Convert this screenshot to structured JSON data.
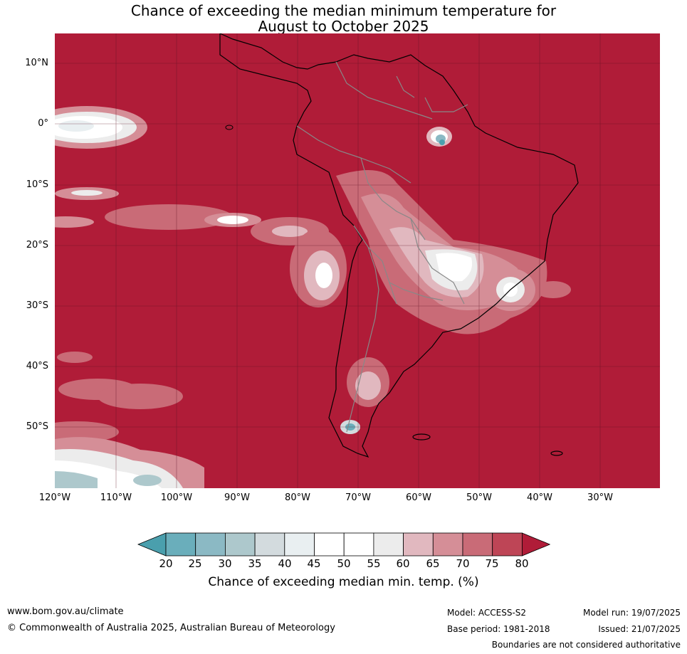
{
  "title": {
    "line1": "Chance of exceeding the median minimum temperature for",
    "line2": "August to October 2025"
  },
  "axes": {
    "lat_labels": [
      "10°N",
      "0°",
      "10°S",
      "20°S",
      "30°S",
      "40°S",
      "50°S"
    ],
    "lon_labels": [
      "120°W",
      "110°W",
      "100°W",
      "90°W",
      "80°W",
      "70°W",
      "60°W",
      "50°W",
      "40°W",
      "30°W"
    ]
  },
  "colorbar": {
    "ticks": [
      "20",
      "25",
      "30",
      "35",
      "40",
      "45",
      "50",
      "55",
      "60",
      "65",
      "70",
      "75",
      "80"
    ],
    "colors": [
      "#4a9fad",
      "#6aaebb",
      "#8bb9c4",
      "#adc8cc",
      "#d3dbde",
      "#e9eff1",
      "#ffffff",
      "#ffffff",
      "#ececec",
      "#e1b8bf",
      "#d58e97",
      "#c96b77",
      "#be4556",
      "#b01c38"
    ],
    "label": "Chance of exceeding median min. temp. (%)"
  },
  "footer": {
    "website": "www.bom.gov.au/climate",
    "copyright": "© Commonwealth of Australia 2025, Australian Bureau of Meteorology",
    "model": "Model: ACCESS-S2",
    "base_period": "Base period: 1981-2018",
    "model_run": "Model run: 19/07/2025",
    "issued": "Issued: 21/07/2025",
    "disclaimer": "Boundaries are not considered authoritative"
  }
}
